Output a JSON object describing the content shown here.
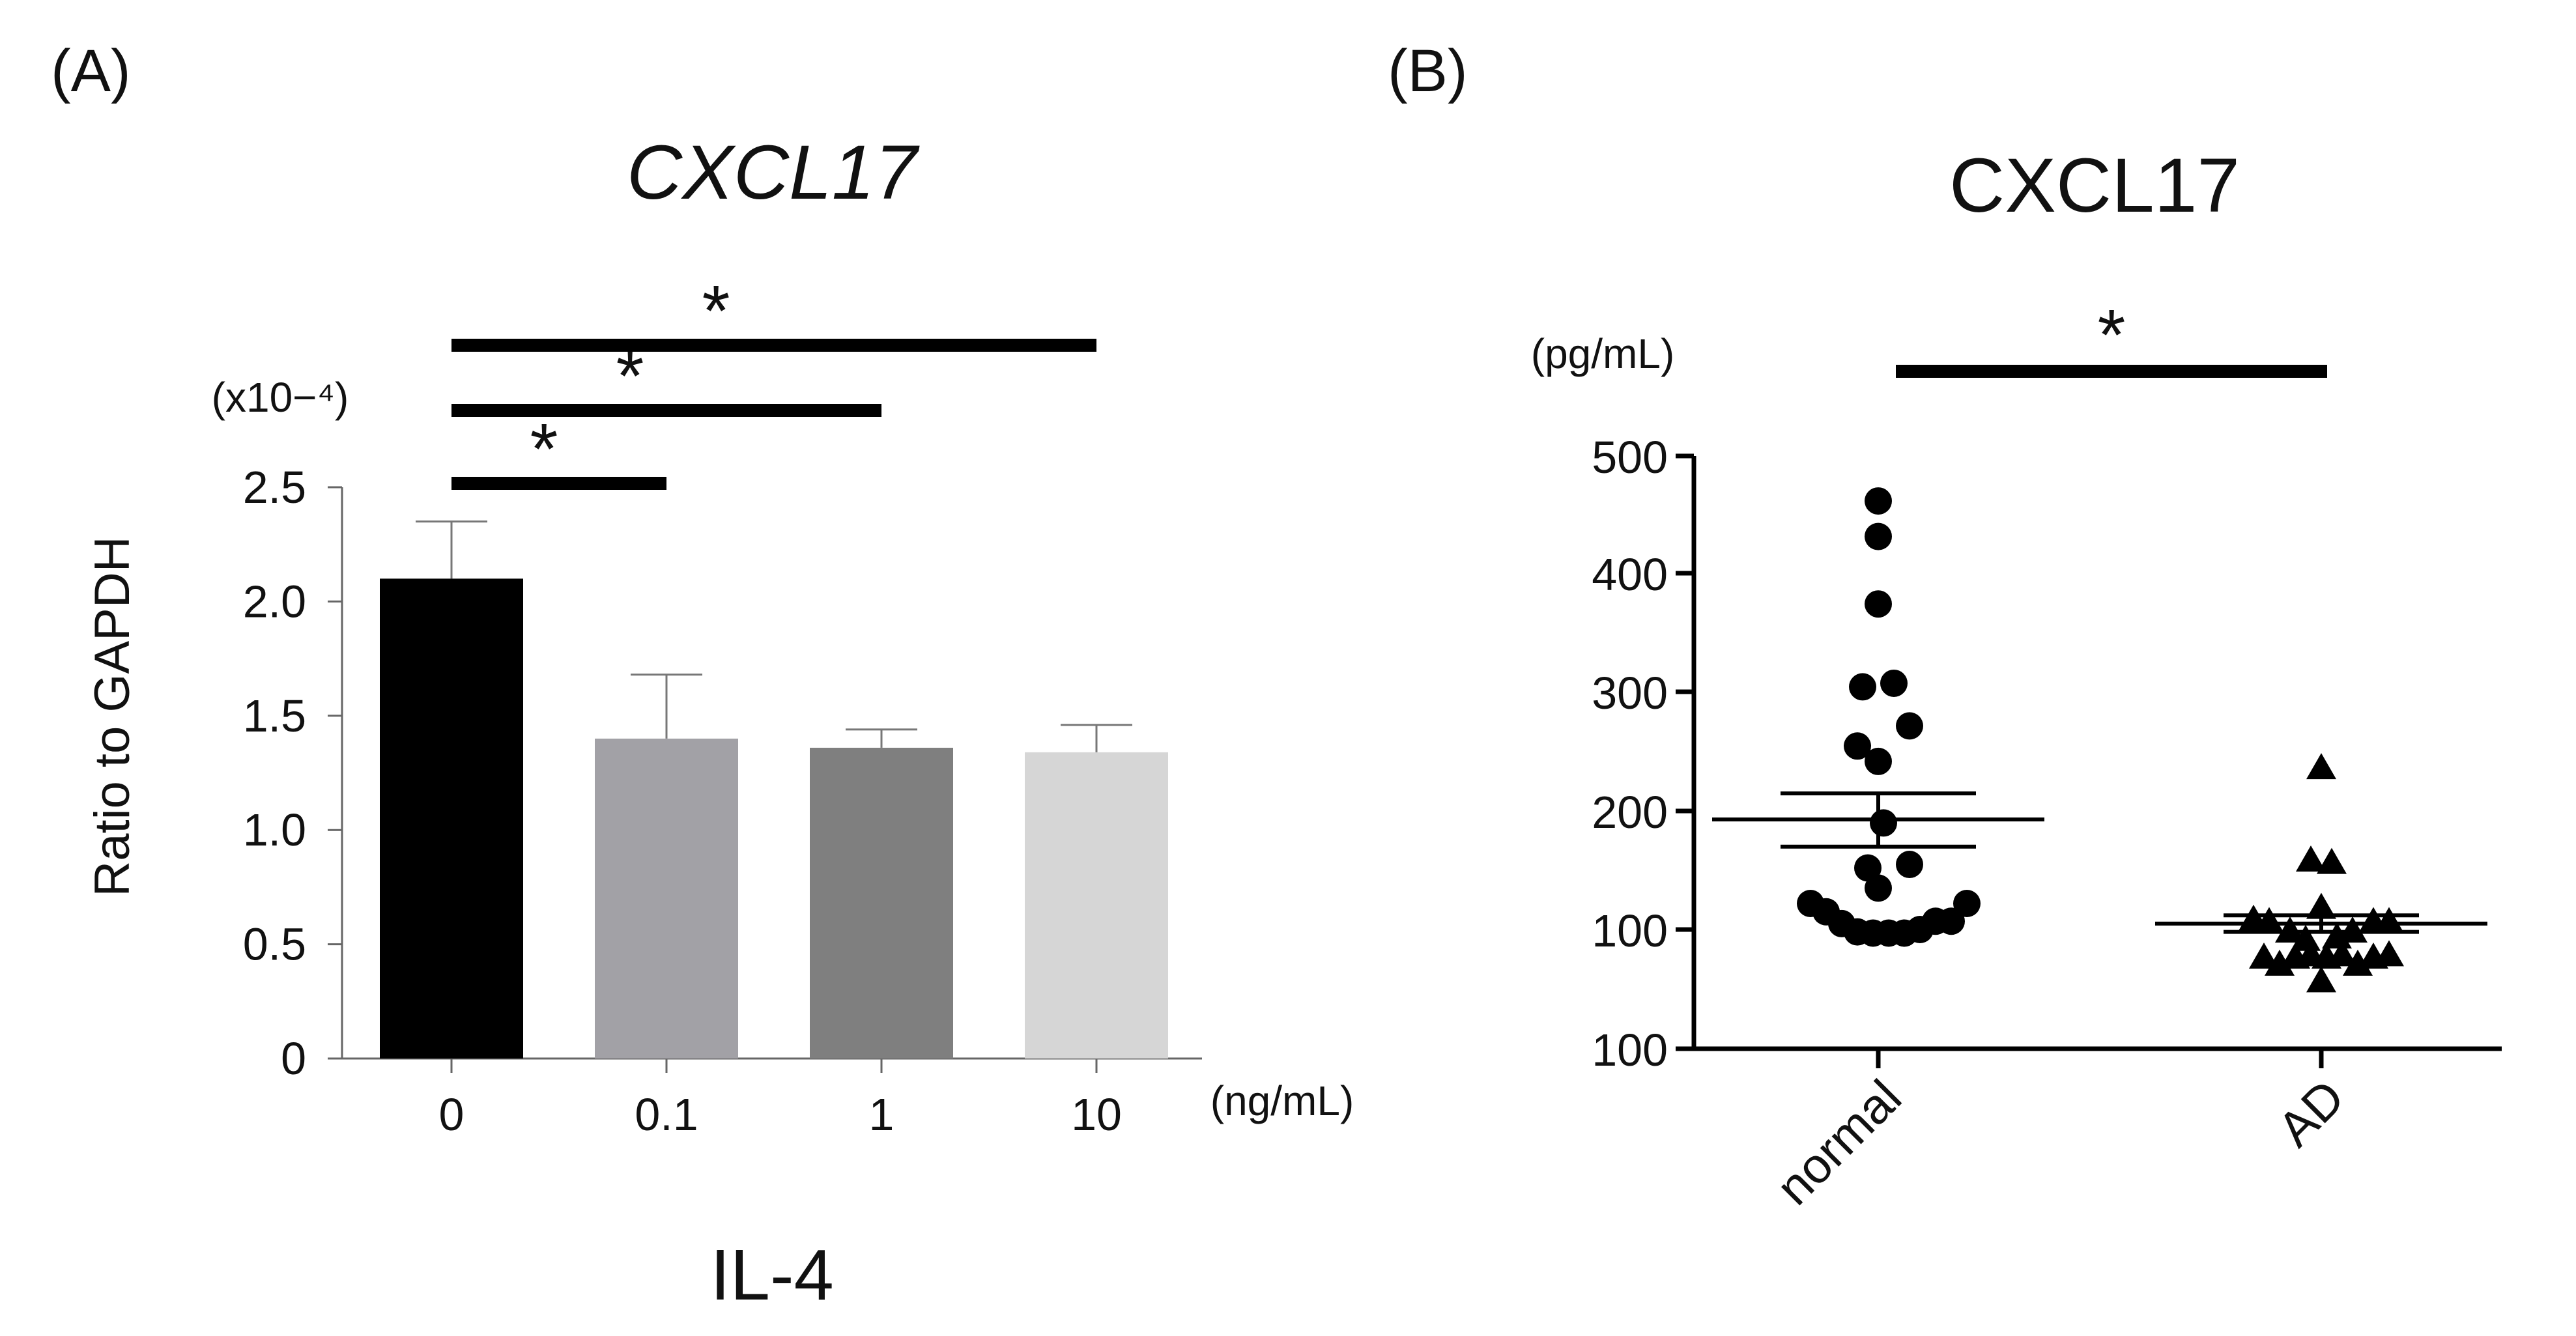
{
  "chart_data": [
    {
      "panel": "(A)",
      "type": "bar",
      "title": "CXCL17",
      "ylabel": "Ratio to GAPDH",
      "y_multiplier_label": "(x10−⁴)",
      "xlabel": "IL-4",
      "x_unit": "(ng/mL)",
      "categories": [
        "0",
        "0.1",
        "1",
        "10"
      ],
      "values": [
        2.1,
        1.4,
        1.36,
        1.34
      ],
      "errors": [
        0.25,
        0.28,
        0.08,
        0.12
      ],
      "bar_colors": [
        "#000000",
        "#a2a1a6",
        "#7f7f7f",
        "#d6d6d6"
      ],
      "yticks": [
        "0",
        "0.5",
        "1.0",
        "1.5",
        "2.0",
        "2.5"
      ],
      "ylim": [
        0,
        2.5
      ],
      "significance": [
        {
          "from": 0,
          "to": 1,
          "label": "*"
        },
        {
          "from": 0,
          "to": 2,
          "label": "*"
        },
        {
          "from": 0,
          "to": 3,
          "label": "*"
        }
      ]
    },
    {
      "panel": "(B)",
      "type": "scatter",
      "title": "CXCL17",
      "y_unit": "(pg/mL)",
      "categories": [
        "normal",
        "AD"
      ],
      "yticks": [
        "100",
        "100",
        "200",
        "300",
        "400",
        "500"
      ],
      "ylim": [
        0,
        500
      ],
      "series": [
        {
          "name": "normal",
          "marker": "circle",
          "mean": 193,
          "sem_upper": 215,
          "sem_lower": 170,
          "points": [
            {
              "dx": 0,
              "y": 462
            },
            {
              "dx": 0,
              "y": 432
            },
            {
              "dx": 0,
              "y": 375
            },
            {
              "dx": -0.15,
              "y": 305
            },
            {
              "dx": 0.15,
              "y": 308
            },
            {
              "dx": 0.3,
              "y": 272
            },
            {
              "dx": -0.2,
              "y": 255
            },
            {
              "dx": 0,
              "y": 242
            },
            {
              "dx": 0.05,
              "y": 190
            },
            {
              "dx": -0.1,
              "y": 152
            },
            {
              "dx": 0.3,
              "y": 155
            },
            {
              "dx": 0,
              "y": 135
            },
            {
              "dx": -0.65,
              "y": 122
            },
            {
              "dx": -0.5,
              "y": 115
            },
            {
              "dx": -0.35,
              "y": 105
            },
            {
              "dx": -0.2,
              "y": 98
            },
            {
              "dx": -0.05,
              "y": 97
            },
            {
              "dx": 0.1,
              "y": 97
            },
            {
              "dx": 0.25,
              "y": 97
            },
            {
              "dx": 0.4,
              "y": 100
            },
            {
              "dx": 0.55,
              "y": 107
            },
            {
              "dx": 0.7,
              "y": 107
            },
            {
              "dx": 0.85,
              "y": 122
            }
          ]
        },
        {
          "name": "AD",
          "marker": "triangle",
          "mean": 105,
          "sem_upper": 112,
          "sem_lower": 98,
          "points": [
            {
              "dx": 0,
              "y": 238
            },
            {
              "dx": -0.1,
              "y": 160
            },
            {
              "dx": 0.1,
              "y": 158
            },
            {
              "dx": 0,
              "y": 120
            },
            {
              "dx": -0.65,
              "y": 110
            },
            {
              "dx": -0.5,
              "y": 108
            },
            {
              "dx": 0.5,
              "y": 108
            },
            {
              "dx": 0.65,
              "y": 108
            },
            {
              "dx": -0.3,
              "y": 100
            },
            {
              "dx": 0.3,
              "y": 100
            },
            {
              "dx": -0.15,
              "y": 93
            },
            {
              "dx": 0.15,
              "y": 95
            },
            {
              "dx": -0.55,
              "y": 78
            },
            {
              "dx": -0.4,
              "y": 72
            },
            {
              "dx": -0.25,
              "y": 78
            },
            {
              "dx": -0.1,
              "y": 80
            },
            {
              "dx": 0.05,
              "y": 78
            },
            {
              "dx": 0.2,
              "y": 80
            },
            {
              "dx": 0.35,
              "y": 72
            },
            {
              "dx": 0.5,
              "y": 78
            },
            {
              "dx": 0.65,
              "y": 80
            },
            {
              "dx": 0,
              "y": 58
            }
          ]
        }
      ],
      "significance": [
        {
          "from": 0,
          "to": 1,
          "label": "*"
        }
      ]
    }
  ]
}
